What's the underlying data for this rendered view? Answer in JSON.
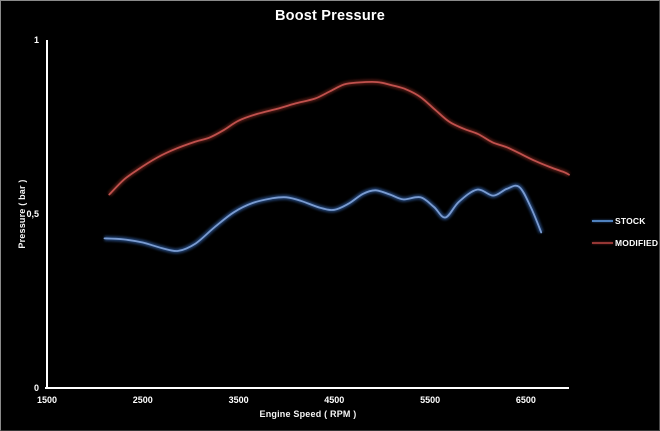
{
  "frame": {
    "background": "#000000",
    "border_light": "#8a8a8a",
    "border_dark": "#353535"
  },
  "chart_data": {
    "type": "line",
    "title": "Boost Pressure",
    "xlabel": "Engine Speed ( RPM )",
    "ylabel": "Pressure ( bar )",
    "xlim": [
      1500,
      6950
    ],
    "ylim": [
      0,
      1
    ],
    "grid": false,
    "background": "#000000",
    "axis_color": "#ffffff",
    "text_color": "#ffffff",
    "legend_position": "right",
    "x_ticks": [
      {
        "value": 1500,
        "label": "1500"
      },
      {
        "value": 2500,
        "label": "2500"
      },
      {
        "value": 3500,
        "label": "3500"
      },
      {
        "value": 4500,
        "label": "4500"
      },
      {
        "value": 5500,
        "label": "5500"
      },
      {
        "value": 6500,
        "label": "6500"
      }
    ],
    "y_ticks": [
      {
        "value": 0,
        "label": "0"
      },
      {
        "value": 0.5,
        "label": "0,5"
      },
      {
        "value": 1,
        "label": "1"
      }
    ],
    "series": [
      {
        "name": "STOCK",
        "color": "#7a9bd0",
        "glow_color": "#27497e",
        "legend_color": "#4f81bd",
        "points": [
          [
            2100,
            0.43
          ],
          [
            2300,
            0.427
          ],
          [
            2500,
            0.418
          ],
          [
            2700,
            0.402
          ],
          [
            2870,
            0.394
          ],
          [
            3050,
            0.415
          ],
          [
            3250,
            0.462
          ],
          [
            3450,
            0.505
          ],
          [
            3650,
            0.532
          ],
          [
            3850,
            0.545
          ],
          [
            4000,
            0.548
          ],
          [
            4150,
            0.538
          ],
          [
            4350,
            0.518
          ],
          [
            4500,
            0.512
          ],
          [
            4650,
            0.53
          ],
          [
            4800,
            0.558
          ],
          [
            4930,
            0.568
          ],
          [
            5080,
            0.556
          ],
          [
            5220,
            0.542
          ],
          [
            5400,
            0.548
          ],
          [
            5540,
            0.52
          ],
          [
            5660,
            0.49
          ],
          [
            5800,
            0.535
          ],
          [
            5990,
            0.57
          ],
          [
            6160,
            0.553
          ],
          [
            6300,
            0.572
          ],
          [
            6430,
            0.578
          ],
          [
            6550,
            0.52
          ],
          [
            6660,
            0.447
          ]
        ]
      },
      {
        "name": "MODIFIED",
        "color": "#c0514d",
        "glow_color": "#551b19",
        "legend_color": "#943634",
        "points": [
          [
            2150,
            0.556
          ],
          [
            2300,
            0.598
          ],
          [
            2450,
            0.628
          ],
          [
            2650,
            0.662
          ],
          [
            2850,
            0.688
          ],
          [
            3050,
            0.708
          ],
          [
            3200,
            0.72
          ],
          [
            3350,
            0.742
          ],
          [
            3500,
            0.768
          ],
          [
            3700,
            0.788
          ],
          [
            3900,
            0.802
          ],
          [
            4100,
            0.818
          ],
          [
            4300,
            0.832
          ],
          [
            4450,
            0.852
          ],
          [
            4600,
            0.872
          ],
          [
            4750,
            0.878
          ],
          [
            4950,
            0.879
          ],
          [
            5100,
            0.87
          ],
          [
            5250,
            0.858
          ],
          [
            5400,
            0.836
          ],
          [
            5550,
            0.8
          ],
          [
            5700,
            0.765
          ],
          [
            5850,
            0.745
          ],
          [
            6000,
            0.73
          ],
          [
            6150,
            0.706
          ],
          [
            6300,
            0.692
          ],
          [
            6450,
            0.672
          ],
          [
            6600,
            0.652
          ],
          [
            6750,
            0.635
          ],
          [
            6900,
            0.62
          ],
          [
            6950,
            0.613
          ]
        ]
      }
    ]
  }
}
